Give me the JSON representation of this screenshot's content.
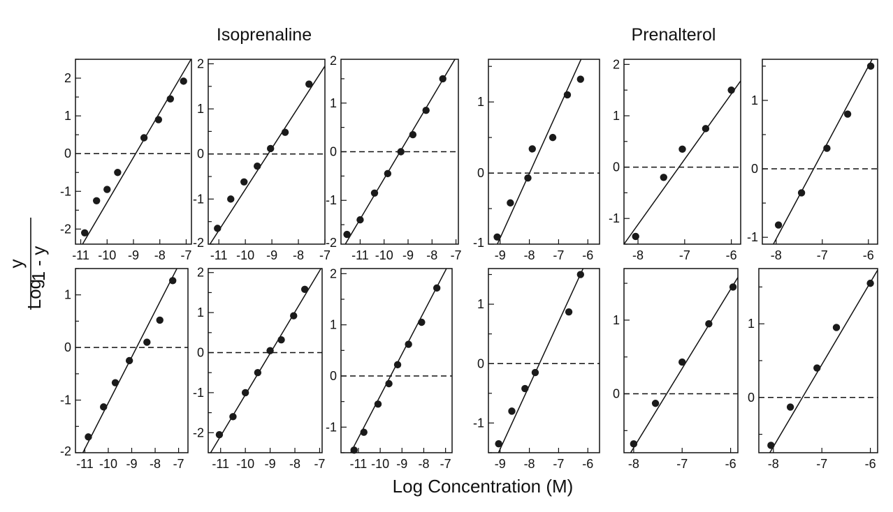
{
  "titles": [
    "Isoprenaline",
    "Prenalterol"
  ],
  "y_label": {
    "prefix": "Log",
    "numerator": "y",
    "denominator": "1 - y"
  },
  "x_label": "Log Concentration (M)",
  "colors": {
    "ink": "#111111",
    "marker": "#1a1a1a",
    "background": "#ffffff"
  },
  "chart_data": [
    {
      "type": "scatter",
      "group": "Isoprenaline",
      "row": 1,
      "col": 1,
      "xlim": [
        -11.2,
        -6.8
      ],
      "ylim": [
        -2.4,
        2.5
      ],
      "xticks": [
        -11,
        -10,
        -9,
        -8,
        -7
      ],
      "xtick_labels": [
        "-11",
        "-10",
        "-9",
        "-8",
        "-7"
      ],
      "yticks": [
        2,
        1,
        0,
        -1,
        -2
      ],
      "ytick_labels": [
        "2",
        "1",
        "0",
        "-1",
        "-2"
      ],
      "points": [
        [
          -10.85,
          -2.1
        ],
        [
          -10.4,
          -1.25
        ],
        [
          -10.0,
          -0.95
        ],
        [
          -9.6,
          -0.5
        ],
        [
          -8.6,
          0.42
        ],
        [
          -8.05,
          0.9
        ],
        [
          -7.6,
          1.45
        ],
        [
          -7.1,
          1.92
        ]
      ],
      "fit": [
        [
          -11.2,
          -2.72
        ],
        [
          -6.8,
          2.52
        ]
      ],
      "reference_y": 0
    },
    {
      "type": "scatter",
      "group": "Isoprenaline",
      "row": 1,
      "col": 2,
      "xlim": [
        -11.4,
        -7.0
      ],
      "ylim": [
        -2.0,
        2.1
      ],
      "xticks": [
        -11,
        -10,
        -9,
        -8,
        -7
      ],
      "xtick_labels": [
        "-11",
        "-10",
        "-9",
        "-8",
        "-7"
      ],
      "yticks": [
        2,
        1,
        0,
        -1,
        -2
      ],
      "ytick_labels": [
        "2",
        "1",
        "0",
        "-1",
        "-2"
      ],
      "points": [
        [
          -11.05,
          -1.65
        ],
        [
          -10.55,
          -1.0
        ],
        [
          -10.05,
          -0.62
        ],
        [
          -9.55,
          -0.27
        ],
        [
          -9.05,
          0.12
        ],
        [
          -8.5,
          0.48
        ],
        [
          -7.6,
          1.55
        ]
      ],
      "fit": [
        [
          -11.4,
          -2.06
        ],
        [
          -7.0,
          1.95
        ]
      ],
      "reference_y": 0
    },
    {
      "type": "scatter",
      "group": "Isoprenaline",
      "row": 1,
      "col": 3,
      "xlim": [
        -11.8,
        -6.9
      ],
      "ylim": [
        -1.9,
        1.9
      ],
      "xticks": [
        -11,
        -10,
        -9,
        -8,
        -7
      ],
      "xtick_labels": [
        "-11",
        "-10",
        "-9",
        "-8",
        "-7"
      ],
      "yticks": [
        2,
        1,
        0,
        -1,
        -2
      ],
      "ytick_labels": [
        "2",
        "1",
        "0",
        "-1",
        "-2"
      ],
      "points": [
        [
          -11.55,
          -1.7
        ],
        [
          -11.0,
          -1.4
        ],
        [
          -10.4,
          -0.85
        ],
        [
          -9.85,
          -0.45
        ],
        [
          -9.3,
          0.0
        ],
        [
          -8.8,
          0.35
        ],
        [
          -8.25,
          0.85
        ],
        [
          -7.55,
          1.5
        ]
      ],
      "fit": [
        [
          -11.8,
          -2.05
        ],
        [
          -6.9,
          2.02
        ]
      ],
      "reference_y": 0
    },
    {
      "type": "scatter",
      "group": "Prenalterol",
      "row": 1,
      "col": 1,
      "xlim": [
        -9.4,
        -5.6
      ],
      "ylim": [
        -1.0,
        1.6
      ],
      "xticks": [
        -9,
        -8,
        -7,
        -6
      ],
      "xtick_labels": [
        "-9",
        "-8",
        "-7",
        "-6"
      ],
      "yticks": [
        1,
        0,
        -1
      ],
      "ytick_labels": [
        "1",
        "0",
        "-1"
      ],
      "points": [
        [
          -9.1,
          -0.9
        ],
        [
          -8.65,
          -0.42
        ],
        [
          -8.05,
          -0.07
        ],
        [
          -7.9,
          0.34
        ],
        [
          -7.2,
          0.5
        ],
        [
          -6.7,
          1.1
        ],
        [
          -6.25,
          1.32
        ]
      ],
      "fit": [
        [
          -9.15,
          -1.05
        ],
        [
          -6.1,
          1.72
        ]
      ],
      "reference_y": 0
    },
    {
      "type": "scatter",
      "group": "Prenalterol",
      "row": 1,
      "col": 2,
      "xlim": [
        -8.3,
        -5.8
      ],
      "ylim": [
        -1.5,
        2.1
      ],
      "xticks": [
        -8,
        -7,
        -6
      ],
      "xtick_labels": [
        "-8",
        "-7",
        "-6"
      ],
      "yticks": [
        2,
        1,
        0,
        -1
      ],
      "ytick_labels": [
        "2",
        "1",
        "0",
        "-1"
      ],
      "points": [
        [
          -8.05,
          -1.35
        ],
        [
          -7.45,
          -0.2
        ],
        [
          -7.05,
          0.35
        ],
        [
          -6.55,
          0.75
        ],
        [
          -6.0,
          1.5
        ]
      ],
      "fit": [
        [
          -8.3,
          -1.5
        ],
        [
          -5.8,
          1.68
        ]
      ],
      "reference_y": 0
    },
    {
      "type": "scatter",
      "group": "Prenalterol",
      "row": 1,
      "col": 3,
      "xlim": [
        -8.3,
        -5.8
      ],
      "ylim": [
        -1.1,
        1.6
      ],
      "xticks": [
        -8,
        -7,
        -6
      ],
      "xtick_labels": [
        "-8",
        "-7",
        "-6"
      ],
      "yticks": [
        1,
        0,
        -1
      ],
      "ytick_labels": [
        "1",
        "0",
        "-1"
      ],
      "points": [
        [
          -7.95,
          -0.82
        ],
        [
          -7.45,
          -0.35
        ],
        [
          -6.9,
          0.3
        ],
        [
          -6.45,
          0.8
        ],
        [
          -5.95,
          1.5
        ]
      ],
      "fit": [
        [
          -8.1,
          -1.15
        ],
        [
          -5.8,
          1.75
        ]
      ],
      "reference_y": 0
    },
    {
      "type": "scatter",
      "group": "Isoprenaline",
      "row": 2,
      "col": 1,
      "xlim": [
        -11.4,
        -6.6
      ],
      "ylim": [
        -2.0,
        1.5
      ],
      "xticks": [
        -11,
        -10,
        -9,
        -8,
        -7
      ],
      "xtick_labels": [
        "-11",
        "-10",
        "-9",
        "-8",
        "-7"
      ],
      "yticks": [
        1,
        0,
        -1,
        -2
      ],
      "ytick_labels": [
        "1",
        "0",
        "-1",
        "-2"
      ],
      "points": [
        [
          -10.85,
          -1.7
        ],
        [
          -10.2,
          -1.13
        ],
        [
          -9.7,
          -0.67
        ],
        [
          -9.1,
          -0.25
        ],
        [
          -8.35,
          0.1
        ],
        [
          -7.8,
          0.52
        ],
        [
          -7.25,
          1.27
        ]
      ],
      "fit": [
        [
          -11.2,
          -2.1
        ],
        [
          -6.9,
          1.65
        ]
      ],
      "reference_y": 0
    },
    {
      "type": "scatter",
      "group": "Isoprenaline",
      "row": 2,
      "col": 2,
      "xlim": [
        -11.5,
        -6.9
      ],
      "ylim": [
        -2.5,
        2.1
      ],
      "xticks": [
        -11,
        -10,
        -9,
        -8,
        -7
      ],
      "xtick_labels": [
        "-11",
        "-10",
        "-9",
        "-8",
        "-7"
      ],
      "yticks": [
        2,
        1,
        0,
        -1,
        -2
      ],
      "ytick_labels": [
        "2",
        "1",
        "0",
        "-1",
        "-2"
      ],
      "points": [
        [
          -11.05,
          -2.05
        ],
        [
          -10.5,
          -1.6
        ],
        [
          -10.0,
          -1.0
        ],
        [
          -9.5,
          -0.5
        ],
        [
          -9.0,
          0.05
        ],
        [
          -8.55,
          0.32
        ],
        [
          -8.05,
          0.92
        ],
        [
          -7.6,
          1.58
        ]
      ],
      "fit": [
        [
          -11.5,
          -2.6
        ],
        [
          -6.9,
          2.15
        ]
      ],
      "reference_y": 0
    },
    {
      "type": "scatter",
      "group": "Isoprenaline",
      "row": 2,
      "col": 3,
      "xlim": [
        -11.8,
        -6.7
      ],
      "ylim": [
        -1.5,
        2.1
      ],
      "xticks": [
        -11,
        -10,
        -9,
        -8,
        -7
      ],
      "xtick_labels": [
        "-11",
        "-10",
        "-9",
        "-8",
        "-7"
      ],
      "yticks": [
        2,
        1,
        0,
        -1
      ],
      "ytick_labels": [
        "2",
        "1",
        "0",
        "-1"
      ],
      "points": [
        [
          -11.2,
          -1.45
        ],
        [
          -10.75,
          -1.1
        ],
        [
          -10.1,
          -0.55
        ],
        [
          -9.6,
          -0.15
        ],
        [
          -9.2,
          0.22
        ],
        [
          -8.7,
          0.62
        ],
        [
          -8.1,
          1.05
        ],
        [
          -7.4,
          1.72
        ]
      ],
      "fit": [
        [
          -11.6,
          -1.7
        ],
        [
          -6.8,
          2.23
        ]
      ],
      "reference_y": 0
    },
    {
      "type": "scatter",
      "group": "Prenalterol",
      "row": 2,
      "col": 1,
      "xlim": [
        -9.4,
        -5.6
      ],
      "ylim": [
        -1.5,
        1.6
      ],
      "xticks": [
        -9,
        -8,
        -7,
        -6
      ],
      "xtick_labels": [
        "-9",
        "-8",
        "-7",
        "-6"
      ],
      "yticks": [
        1,
        0,
        -1
      ],
      "ytick_labels": [
        "1",
        "0",
        "-1"
      ],
      "points": [
        [
          -9.05,
          -1.35
        ],
        [
          -8.6,
          -0.8
        ],
        [
          -8.15,
          -0.42
        ],
        [
          -7.8,
          -0.15
        ],
        [
          -6.65,
          0.87
        ],
        [
          -6.25,
          1.5
        ]
      ],
      "fit": [
        [
          -9.15,
          -1.6
        ],
        [
          -6.05,
          1.72
        ]
      ],
      "reference_y": 0
    },
    {
      "type": "scatter",
      "group": "Prenalterol",
      "row": 2,
      "col": 2,
      "xlim": [
        -8.2,
        -5.85
      ],
      "ylim": [
        -0.8,
        1.7
      ],
      "xticks": [
        -8,
        -7,
        -6
      ],
      "xtick_labels": [
        "-8",
        "-7",
        "-6"
      ],
      "yticks": [
        1,
        0
      ],
      "ytick_labels": [
        "1",
        "0"
      ],
      "points": [
        [
          -8.0,
          -0.68
        ],
        [
          -7.55,
          -0.13
        ],
        [
          -7.0,
          0.43
        ],
        [
          -6.45,
          0.95
        ],
        [
          -5.95,
          1.45
        ]
      ],
      "fit": [
        [
          -8.1,
          -0.84
        ],
        [
          -5.85,
          1.58
        ]
      ],
      "reference_y": 0
    },
    {
      "type": "scatter",
      "group": "Prenalterol",
      "row": 2,
      "col": 3,
      "xlim": [
        -8.3,
        -5.85
      ],
      "ylim": [
        -0.75,
        1.75
      ],
      "xticks": [
        -8,
        -7,
        -6
      ],
      "xtick_labels": [
        "-8",
        "-7",
        "-6"
      ],
      "yticks": [
        1,
        0
      ],
      "ytick_labels": [
        "1",
        "0"
      ],
      "points": [
        [
          -8.05,
          -0.65
        ],
        [
          -7.65,
          -0.13
        ],
        [
          -7.1,
          0.4
        ],
        [
          -6.7,
          0.95
        ],
        [
          -6.0,
          1.55
        ]
      ],
      "fit": [
        [
          -8.1,
          -0.78
        ],
        [
          -5.85,
          1.73
        ]
      ],
      "reference_y": 0
    }
  ]
}
